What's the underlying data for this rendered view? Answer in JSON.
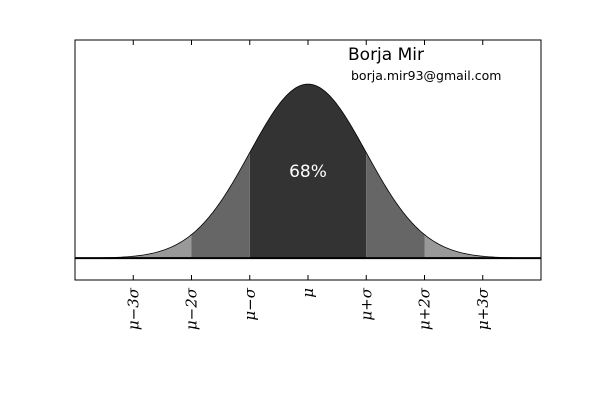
{
  "chart_data": {
    "type": "area",
    "title": "",
    "xlabel": "",
    "ylabel": "",
    "distribution": "normal",
    "mean": 0,
    "std": 1,
    "xlim": [
      -4,
      4
    ],
    "ylim": [
      -0.05,
      0.5
    ],
    "y_ticks": [],
    "grid": false,
    "baseline": 0,
    "x_ticks": [
      {
        "value": -3,
        "label": "μ−3σ"
      },
      {
        "value": -2,
        "label": "μ−2σ"
      },
      {
        "value": -1,
        "label": "μ−σ"
      },
      {
        "value": 0,
        "label": "μ"
      },
      {
        "value": 1,
        "label": "μ+σ"
      },
      {
        "value": 2,
        "label": "μ+2σ"
      },
      {
        "value": 3,
        "label": "μ+3σ"
      }
    ],
    "bands": [
      {
        "from": -1,
        "to": 1,
        "color": "#333333"
      },
      {
        "from": -2,
        "to": -1,
        "color": "#666666"
      },
      {
        "from": 1,
        "to": 2,
        "color": "#666666"
      },
      {
        "from": -3,
        "to": -2,
        "color": "#999999"
      },
      {
        "from": 2,
        "to": 3,
        "color": "#999999"
      },
      {
        "from": -4,
        "to": -3,
        "color": "#cccccc"
      },
      {
        "from": 3,
        "to": 4,
        "color": "#cccccc"
      }
    ],
    "annotations": [
      {
        "text": "68%",
        "x": 0,
        "y": 0.2
      }
    ],
    "author": {
      "name": "Borja Mir",
      "email": "borja.mir93@gmail.com"
    }
  }
}
